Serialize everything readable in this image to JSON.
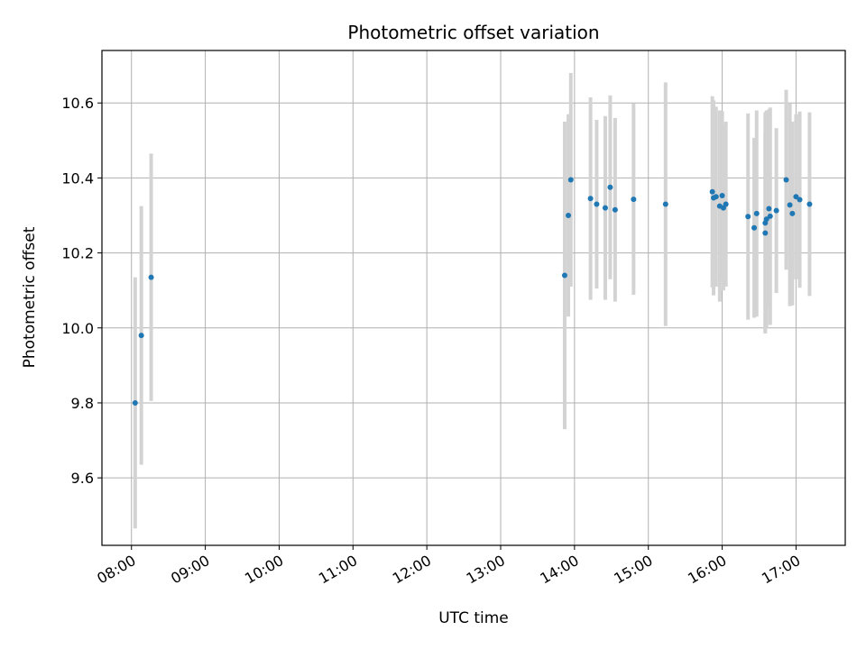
{
  "chart_data": {
    "type": "scatter",
    "title": "Photometric offset variation",
    "xlabel": "UTC time",
    "ylabel": "Photometric offset",
    "x_axis_type": "time",
    "xlim": [
      "07:36",
      "17:40"
    ],
    "ylim": [
      9.42,
      10.74
    ],
    "x_ticks": [
      "08:00",
      "09:00",
      "10:00",
      "11:00",
      "12:00",
      "13:00",
      "14:00",
      "15:00",
      "16:00",
      "17:00"
    ],
    "y_ticks": [
      "9.6",
      "9.8",
      "10.0",
      "10.2",
      "10.4",
      "10.6"
    ],
    "grid": true,
    "point_color": "#1f77b4",
    "errorbar_color": "#d3d3d3",
    "points": [
      {
        "x": "08:03",
        "y": 9.8,
        "err": 0.335
      },
      {
        "x": "08:08",
        "y": 9.98,
        "err": 0.345
      },
      {
        "x": "08:16",
        "y": 10.135,
        "err": 0.33
      },
      {
        "x": "13:52",
        "y": 10.14,
        "err": 0.41
      },
      {
        "x": "13:55",
        "y": 10.3,
        "err": 0.27
      },
      {
        "x": "13:57",
        "y": 10.395,
        "err": 0.285
      },
      {
        "x": "14:13",
        "y": 10.345,
        "err": 0.27
      },
      {
        "x": "14:18",
        "y": 10.33,
        "err": 0.225
      },
      {
        "x": "14:25",
        "y": 10.32,
        "err": 0.245
      },
      {
        "x": "14:29",
        "y": 10.375,
        "err": 0.245
      },
      {
        "x": "14:33",
        "y": 10.315,
        "err": 0.245
      },
      {
        "x": "14:48",
        "y": 10.343,
        "err": 0.255
      },
      {
        "x": "15:14",
        "y": 10.33,
        "err": 0.325
      },
      {
        "x": "15:52",
        "y": 10.363,
        "err": 0.255
      },
      {
        "x": "15:53",
        "y": 10.347,
        "err": 0.26
      },
      {
        "x": "15:55",
        "y": 10.35,
        "err": 0.24
      },
      {
        "x": "15:58",
        "y": 10.325,
        "err": 0.255
      },
      {
        "x": "16:00",
        "y": 10.353,
        "err": 0.225
      },
      {
        "x": "16:01",
        "y": 10.32,
        "err": 0.22
      },
      {
        "x": "16:03",
        "y": 10.33,
        "err": 0.22
      },
      {
        "x": "16:21",
        "y": 10.297,
        "err": 0.275
      },
      {
        "x": "16:26",
        "y": 10.267,
        "err": 0.24
      },
      {
        "x": "16:28",
        "y": 10.305,
        "err": 0.275
      },
      {
        "x": "16:35",
        "y": 10.28,
        "err": 0.295
      },
      {
        "x": "16:35",
        "y": 10.253,
        "err": 0.265
      },
      {
        "x": "16:36",
        "y": 10.29,
        "err": 0.29
      },
      {
        "x": "16:38",
        "y": 10.318,
        "err": 0.265
      },
      {
        "x": "16:39",
        "y": 10.298,
        "err": 0.29
      },
      {
        "x": "16:44",
        "y": 10.313,
        "err": 0.22
      },
      {
        "x": "16:52",
        "y": 10.395,
        "err": 0.24
      },
      {
        "x": "16:55",
        "y": 10.328,
        "err": 0.27
      },
      {
        "x": "16:57",
        "y": 10.305,
        "err": 0.245
      },
      {
        "x": "17:00",
        "y": 10.35,
        "err": 0.22
      },
      {
        "x": "17:03",
        "y": 10.342,
        "err": 0.235
      },
      {
        "x": "17:11",
        "y": 10.33,
        "err": 0.245
      }
    ]
  }
}
